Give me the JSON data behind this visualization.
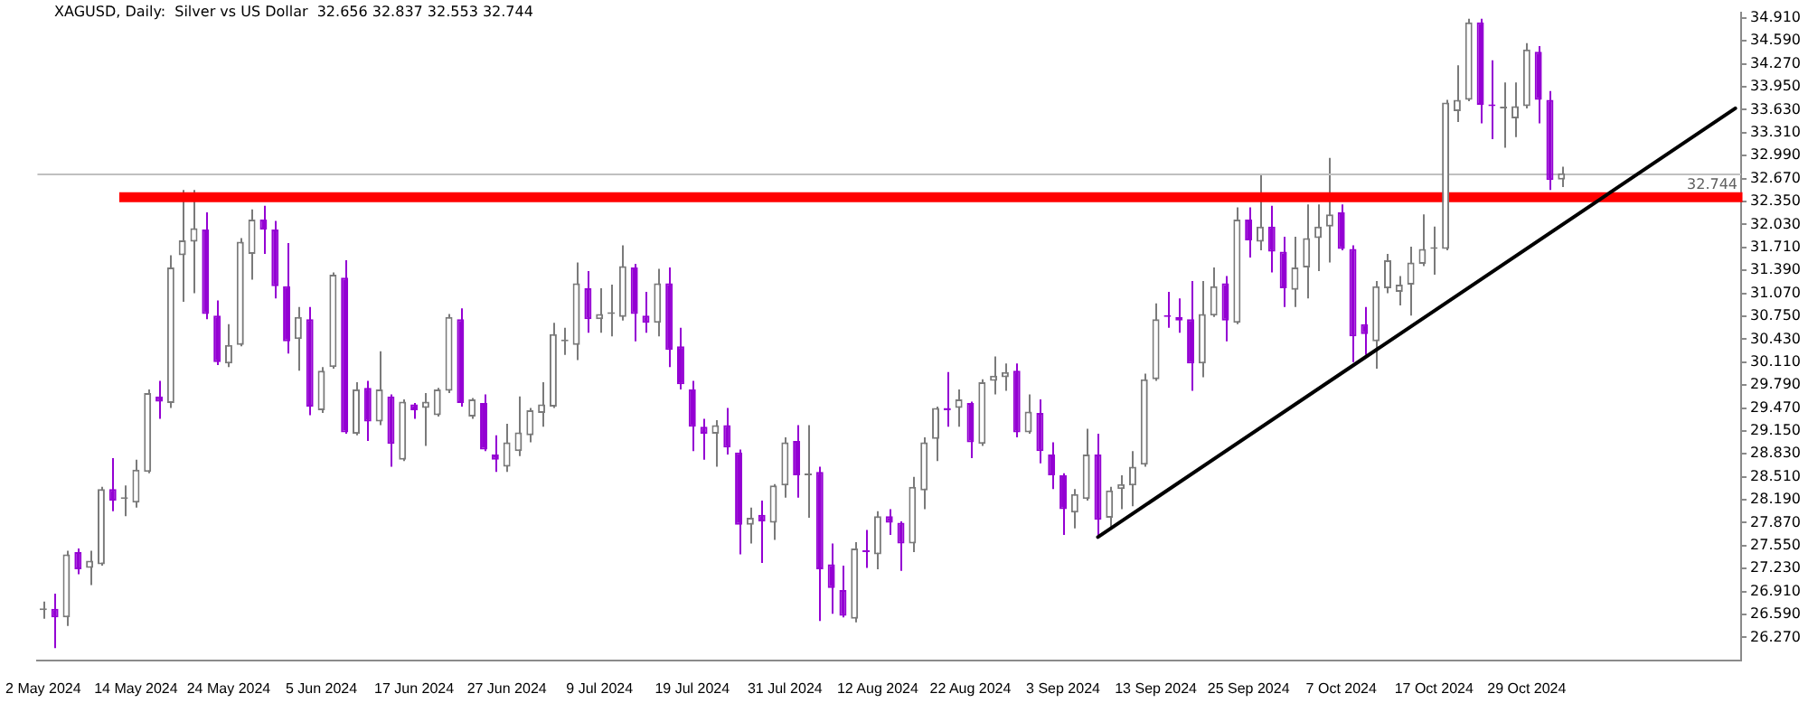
{
  "chart_data": {
    "type": "candlestick",
    "title": "XAGUSD, Daily:  Silver vs US Dollar  32.656 32.837 32.553 32.744",
    "categories": [
      "2 May 2024",
      null,
      null,
      null,
      null,
      null,
      null,
      null,
      "14 May 2024",
      null,
      null,
      null,
      null,
      null,
      null,
      null,
      "24 May 2024",
      null,
      null,
      null,
      null,
      null,
      null,
      null,
      "5 Jun 2024",
      null,
      null,
      null,
      null,
      null,
      null,
      null,
      "17 Jun 2024",
      null,
      null,
      null,
      null,
      null,
      null,
      null,
      "27 Jun 2024",
      null,
      null,
      null,
      null,
      null,
      null,
      null,
      "9 Jul 2024",
      null,
      null,
      null,
      null,
      null,
      null,
      null,
      "19 Jul 2024",
      null,
      null,
      null,
      null,
      null,
      null,
      null,
      "31 Jul 2024",
      null,
      null,
      null,
      null,
      null,
      null,
      null,
      "12 Aug 2024",
      null,
      null,
      null,
      null,
      null,
      null,
      null,
      "22 Aug 2024",
      null,
      null,
      null,
      null,
      null,
      null,
      null,
      "3 Sep 2024",
      null,
      null,
      null,
      null,
      null,
      null,
      null,
      "13 Sep 2024",
      null,
      null,
      null,
      null,
      null,
      null,
      null,
      "25 Sep 2024",
      null,
      null,
      null,
      null,
      null,
      null,
      null,
      "7 Oct 2024",
      null,
      null,
      null,
      null,
      null,
      null,
      null,
      "17 Oct 2024",
      null,
      null,
      null,
      null,
      null,
      null,
      null,
      "29 Oct 2024",
      null,
      null,
      null,
      null,
      null,
      null,
      null,
      null,
      null,
      null,
      null,
      null,
      null,
      null,
      null,
      null,
      null,
      null
    ],
    "ohlc": [
      [
        26.65,
        26.77,
        26.53,
        26.65
      ],
      [
        26.67,
        26.88,
        26.12,
        26.55
      ],
      [
        26.55,
        27.48,
        26.43,
        27.43
      ],
      [
        27.46,
        27.51,
        27.15,
        27.22
      ],
      [
        27.24,
        27.48,
        27.0,
        27.34
      ],
      [
        27.29,
        28.37,
        27.27,
        28.34
      ],
      [
        28.34,
        28.77,
        28.03,
        28.18
      ],
      [
        28.2,
        28.39,
        27.96,
        28.2
      ],
      [
        28.15,
        28.75,
        28.08,
        28.61
      ],
      [
        28.58,
        29.73,
        28.56,
        29.68
      ],
      [
        29.63,
        29.85,
        29.32,
        29.56
      ],
      [
        29.54,
        31.6,
        29.47,
        31.43
      ],
      [
        31.6,
        32.51,
        30.95,
        31.81
      ],
      [
        31.79,
        32.51,
        31.07,
        31.98
      ],
      [
        31.96,
        32.2,
        30.71,
        30.78
      ],
      [
        30.76,
        30.97,
        30.07,
        30.11
      ],
      [
        30.09,
        30.64,
        30.04,
        30.35
      ],
      [
        30.35,
        31.84,
        30.33,
        31.79
      ],
      [
        31.62,
        32.24,
        31.26,
        32.1
      ],
      [
        32.1,
        32.29,
        31.62,
        31.96
      ],
      [
        31.96,
        32.08,
        31.0,
        31.17
      ],
      [
        31.17,
        31.77,
        30.23,
        30.4
      ],
      [
        30.43,
        30.88,
        29.99,
        30.74
      ],
      [
        30.71,
        30.88,
        29.37,
        29.49
      ],
      [
        29.44,
        30.04,
        29.4,
        29.99
      ],
      [
        30.04,
        31.36,
        30.02,
        31.33
      ],
      [
        31.29,
        31.53,
        29.11,
        29.13
      ],
      [
        29.11,
        29.83,
        29.09,
        29.73
      ],
      [
        29.75,
        29.85,
        29.01,
        29.28
      ],
      [
        29.28,
        30.26,
        29.23,
        29.73
      ],
      [
        29.63,
        29.66,
        28.65,
        28.97
      ],
      [
        28.75,
        29.59,
        28.73,
        29.56
      ],
      [
        29.52,
        29.54,
        29.32,
        29.44
      ],
      [
        29.47,
        29.68,
        28.94,
        29.56
      ],
      [
        29.37,
        29.75,
        29.35,
        29.73
      ],
      [
        29.71,
        30.78,
        29.68,
        30.74
      ],
      [
        30.71,
        30.86,
        29.49,
        29.54
      ],
      [
        29.35,
        29.61,
        29.32,
        29.59
      ],
      [
        29.54,
        29.66,
        28.87,
        28.89
      ],
      [
        28.82,
        29.09,
        28.58,
        28.75
      ],
      [
        28.65,
        29.25,
        28.58,
        28.99
      ],
      [
        28.87,
        29.63,
        28.8,
        29.13
      ],
      [
        29.09,
        29.47,
        28.99,
        29.44
      ],
      [
        29.4,
        29.83,
        29.21,
        29.52
      ],
      [
        29.49,
        30.66,
        29.47,
        30.5
      ],
      [
        30.4,
        30.59,
        30.21,
        30.4
      ],
      [
        30.35,
        31.5,
        30.14,
        31.21
      ],
      [
        31.14,
        31.38,
        30.52,
        30.71
      ],
      [
        30.71,
        31.14,
        30.52,
        30.78
      ],
      [
        30.78,
        31.19,
        30.47,
        30.78
      ],
      [
        30.74,
        31.74,
        30.69,
        31.45
      ],
      [
        31.43,
        31.48,
        30.4,
        30.78
      ],
      [
        30.76,
        31.09,
        30.52,
        30.66
      ],
      [
        30.66,
        31.41,
        30.47,
        31.21
      ],
      [
        31.21,
        31.43,
        30.04,
        30.28
      ],
      [
        30.33,
        30.59,
        29.73,
        29.8
      ],
      [
        29.73,
        29.85,
        28.87,
        29.21
      ],
      [
        29.21,
        29.32,
        28.75,
        29.11
      ],
      [
        29.11,
        29.3,
        28.65,
        29.23
      ],
      [
        29.23,
        29.47,
        28.82,
        28.92
      ],
      [
        28.85,
        28.89,
        27.43,
        27.84
      ],
      [
        27.84,
        28.08,
        27.58,
        27.94
      ],
      [
        27.98,
        28.18,
        27.31,
        27.89
      ],
      [
        27.87,
        28.41,
        27.63,
        28.39
      ],
      [
        28.39,
        29.06,
        28.22,
        28.99
      ],
      [
        29.01,
        29.23,
        28.22,
        28.53
      ],
      [
        28.53,
        29.23,
        27.94,
        28.53
      ],
      [
        28.58,
        28.65,
        26.5,
        27.22
      ],
      [
        27.29,
        27.58,
        26.6,
        26.96
      ],
      [
        26.93,
        27.27,
        26.55,
        26.57
      ],
      [
        26.53,
        27.6,
        26.48,
        27.51
      ],
      [
        27.48,
        27.77,
        27.24,
        27.46
      ],
      [
        27.43,
        28.03,
        27.22,
        27.96
      ],
      [
        27.96,
        28.06,
        27.7,
        27.87
      ],
      [
        27.87,
        27.89,
        27.2,
        27.58
      ],
      [
        27.58,
        28.51,
        27.46,
        28.37
      ],
      [
        28.32,
        29.06,
        28.06,
        28.99
      ],
      [
        29.04,
        29.49,
        28.73,
        29.47
      ],
      [
        29.47,
        29.97,
        29.21,
        29.44
      ],
      [
        29.47,
        29.73,
        29.21,
        29.59
      ],
      [
        29.54,
        29.56,
        28.77,
        28.99
      ],
      [
        28.97,
        29.87,
        28.94,
        29.83
      ],
      [
        29.85,
        30.19,
        29.66,
        29.92
      ],
      [
        29.9,
        30.09,
        29.71,
        29.97
      ],
      [
        29.99,
        30.09,
        29.06,
        29.13
      ],
      [
        29.13,
        29.66,
        29.11,
        29.42
      ],
      [
        29.4,
        29.59,
        28.7,
        28.87
      ],
      [
        28.82,
        28.99,
        28.34,
        28.53
      ],
      [
        28.53,
        28.56,
        27.7,
        28.06
      ],
      [
        28.01,
        28.34,
        27.79,
        28.27
      ],
      [
        28.2,
        29.18,
        28.18,
        28.82
      ],
      [
        28.82,
        29.11,
        27.67,
        27.91
      ],
      [
        27.94,
        28.37,
        27.79,
        28.32
      ],
      [
        28.34,
        28.53,
        28.06,
        28.41
      ],
      [
        28.39,
        28.87,
        28.1,
        28.65
      ],
      [
        28.68,
        29.95,
        28.65,
        29.87
      ],
      [
        29.87,
        30.93,
        29.85,
        30.71
      ],
      [
        30.76,
        31.09,
        30.59,
        30.74
      ],
      [
        30.74,
        31.0,
        30.52,
        30.69
      ],
      [
        30.71,
        31.24,
        29.71,
        30.09
      ],
      [
        30.09,
        31.24,
        29.9,
        30.78
      ],
      [
        30.76,
        31.43,
        30.74,
        31.17
      ],
      [
        31.21,
        31.31,
        30.4,
        30.69
      ],
      [
        30.66,
        32.27,
        30.64,
        32.1
      ],
      [
        32.1,
        32.27,
        31.57,
        31.81
      ],
      [
        31.79,
        32.72,
        31.67,
        32.0
      ],
      [
        32.0,
        32.29,
        31.36,
        31.65
      ],
      [
        31.65,
        31.86,
        30.88,
        31.14
      ],
      [
        31.12,
        31.86,
        30.88,
        31.43
      ],
      [
        31.43,
        32.31,
        31.0,
        31.84
      ],
      [
        31.84,
        32.31,
        31.38,
        32.0
      ],
      [
        32.0,
        32.96,
        31.5,
        32.17
      ],
      [
        32.2,
        32.31,
        31.67,
        31.69
      ],
      [
        31.69,
        31.74,
        30.11,
        30.47
      ],
      [
        30.64,
        30.88,
        30.21,
        30.5
      ],
      [
        30.4,
        31.24,
        30.02,
        31.17
      ],
      [
        31.14,
        31.62,
        31.07,
        31.53
      ],
      [
        31.09,
        31.31,
        30.9,
        31.19
      ],
      [
        31.19,
        31.72,
        30.76,
        31.5
      ],
      [
        31.48,
        32.17,
        31.45,
        31.69
      ],
      [
        31.69,
        32.0,
        31.33,
        31.69
      ],
      [
        31.69,
        33.77,
        31.67,
        33.73
      ],
      [
        33.61,
        34.25,
        33.46,
        33.77
      ],
      [
        33.77,
        34.9,
        33.75,
        34.85
      ],
      [
        34.85,
        34.9,
        33.44,
        33.7
      ],
      [
        33.7,
        34.32,
        33.22,
        33.68
      ],
      [
        33.65,
        34.01,
        33.1,
        33.65
      ],
      [
        33.51,
        34.01,
        33.25,
        33.68
      ],
      [
        33.68,
        34.56,
        33.65,
        34.47
      ],
      [
        34.44,
        34.52,
        33.44,
        33.77
      ],
      [
        33.77,
        33.89,
        32.51,
        32.65
      ],
      [
        32.656,
        32.837,
        32.553,
        32.744
      ],
      null,
      null,
      null,
      null,
      null,
      null,
      null,
      null,
      null,
      null,
      null,
      null,
      null,
      null,
      null
    ],
    "colors": [
      "#7a7a7a",
      "#9400d3",
      "#7a7a7a",
      "#9400d3",
      "#7a7a7a",
      "#7a7a7a",
      "#9400d3",
      "#7a7a7a",
      "#7a7a7a",
      "#7a7a7a",
      "#9400d3",
      "#7a7a7a",
      "#7a7a7a",
      "#7a7a7a",
      "#9400d3",
      "#9400d3",
      "#7a7a7a",
      "#7a7a7a",
      "#7a7a7a",
      "#9400d3",
      "#9400d3",
      "#9400d3",
      "#7a7a7a",
      "#9400d3",
      "#7a7a7a",
      "#7a7a7a",
      "#9400d3",
      "#7a7a7a",
      "#9400d3",
      "#7a7a7a",
      "#9400d3",
      "#7a7a7a",
      "#9400d3",
      "#7a7a7a",
      "#7a7a7a",
      "#7a7a7a",
      "#9400d3",
      "#7a7a7a",
      "#9400d3",
      "#9400d3",
      "#7a7a7a",
      "#7a7a7a",
      "#7a7a7a",
      "#7a7a7a",
      "#7a7a7a",
      "#7a7a7a",
      "#7a7a7a",
      "#9400d3",
      "#7a7a7a",
      "#7a7a7a",
      "#7a7a7a",
      "#9400d3",
      "#9400d3",
      "#7a7a7a",
      "#9400d3",
      "#9400d3",
      "#9400d3",
      "#9400d3",
      "#7a7a7a",
      "#9400d3",
      "#9400d3",
      "#7a7a7a",
      "#9400d3",
      "#7a7a7a",
      "#7a7a7a",
      "#9400d3",
      "#7a7a7a",
      "#9400d3",
      "#9400d3",
      "#9400d3",
      "#7a7a7a",
      "#9400d3",
      "#7a7a7a",
      "#9400d3",
      "#9400d3",
      "#7a7a7a",
      "#7a7a7a",
      "#7a7a7a",
      "#9400d3",
      "#7a7a7a",
      "#9400d3",
      "#7a7a7a",
      "#7a7a7a",
      "#7a7a7a",
      "#9400d3",
      "#7a7a7a",
      "#9400d3",
      "#9400d3",
      "#9400d3",
      "#7a7a7a",
      "#7a7a7a",
      "#9400d3",
      "#7a7a7a",
      "#7a7a7a",
      "#7a7a7a",
      "#7a7a7a",
      "#7a7a7a",
      "#9400d3",
      "#9400d3",
      "#9400d3",
      "#7a7a7a",
      "#7a7a7a",
      "#9400d3",
      "#7a7a7a",
      "#9400d3",
      "#7a7a7a",
      "#9400d3",
      "#9400d3",
      "#7a7a7a",
      "#7a7a7a",
      "#7a7a7a",
      "#7a7a7a",
      "#9400d3",
      "#9400d3",
      "#9400d3",
      "#7a7a7a",
      "#7a7a7a",
      "#7a7a7a",
      "#7a7a7a",
      "#7a7a7a",
      "#7a7a7a",
      "#7a7a7a",
      "#7a7a7a",
      "#7a7a7a",
      "#9400d3",
      "#9400d3",
      "#7a7a7a",
      "#7a7a7a",
      "#7a7a7a",
      "#9400d3",
      "#9400d3",
      "#7a7a7a",
      null,
      null,
      null,
      null,
      null,
      null,
      null,
      null,
      null,
      null,
      null,
      null,
      null,
      null,
      null
    ],
    "series": [
      {
        "type": "line",
        "color": "#000000",
        "values": [
          null,
          null,
          null,
          null,
          null,
          null,
          null,
          null,
          null,
          null,
          null,
          null,
          null,
          null,
          null,
          null,
          null,
          null,
          null,
          null,
          null,
          null,
          null,
          null,
          null,
          null,
          null,
          null,
          null,
          null,
          null,
          null,
          null,
          null,
          null,
          null,
          null,
          null,
          null,
          null,
          null,
          null,
          null,
          null,
          null,
          null,
          null,
          null,
          null,
          null,
          null,
          null,
          null,
          null,
          null,
          null,
          null,
          null,
          null,
          null,
          null,
          null,
          null,
          null,
          null,
          null,
          null,
          null,
          null,
          null,
          null,
          null,
          null,
          null,
          null,
          null,
          null,
          null,
          null,
          null,
          null,
          null,
          null,
          null,
          null,
          null,
          null,
          null,
          null,
          null,
          null,
          27.67,
          null,
          null,
          null,
          null,
          null,
          null,
          null,
          null,
          null,
          null,
          null,
          null,
          null,
          null,
          null,
          null,
          null,
          null,
          null,
          null,
          null,
          null,
          null,
          null,
          null,
          null,
          null,
          null,
          null,
          null,
          null,
          null,
          null,
          null,
          null,
          null,
          null,
          null,
          null,
          null,
          null,
          null,
          null,
          null,
          null,
          null,
          null,
          null,
          null,
          null,
          null,
          null,
          null,
          null,
          33.65
        ]
      }
    ],
    "ylim": [
      25.95,
      34.99
    ],
    "yticks": [
      {
        "value": 26.27,
        "label": "26.270"
      },
      {
        "value": 26.59,
        "label": "26.590"
      },
      {
        "value": 26.91,
        "label": "26.910"
      },
      {
        "value": 27.23,
        "label": "27.230"
      },
      {
        "value": 27.55,
        "label": "27.550"
      },
      {
        "value": 27.87,
        "label": "27.870"
      },
      {
        "value": 28.19,
        "label": "28.190"
      },
      {
        "value": 28.51,
        "label": "28.510"
      },
      {
        "value": 28.83,
        "label": "28.830"
      },
      {
        "value": 29.15,
        "label": "29.150"
      },
      {
        "value": 29.47,
        "label": "29.470"
      },
      {
        "value": 29.79,
        "label": "29.790"
      },
      {
        "value": 30.11,
        "label": "30.110"
      },
      {
        "value": 30.43,
        "label": "30.430"
      },
      {
        "value": 30.75,
        "label": "30.750"
      },
      {
        "value": 31.07,
        "label": "31.070"
      },
      {
        "value": 31.39,
        "label": "31.390"
      },
      {
        "value": 31.71,
        "label": "31.710"
      },
      {
        "value": 32.03,
        "label": "32.030"
      },
      {
        "value": 32.35,
        "label": "32.350"
      },
      {
        "value": 32.67,
        "label": "32.670"
      },
      {
        "value": 32.99,
        "label": "32.990"
      },
      {
        "value": 33.31,
        "label": "33.310"
      },
      {
        "value": 33.63,
        "label": "33.630"
      },
      {
        "value": 33.95,
        "label": "33.950"
      },
      {
        "value": 34.27,
        "label": "34.270"
      },
      {
        "value": 34.59,
        "label": "34.590"
      },
      {
        "value": 34.91,
        "label": "34.910"
      }
    ],
    "ref_lines": [
      {
        "axis": "y",
        "value": 32.744,
        "label": "32.744",
        "color": "#c0c0c0"
      }
    ],
    "bands": [
      {
        "axis": "y",
        "from": 32.36,
        "to": 32.46,
        "color": "#ff0000"
      }
    ]
  }
}
